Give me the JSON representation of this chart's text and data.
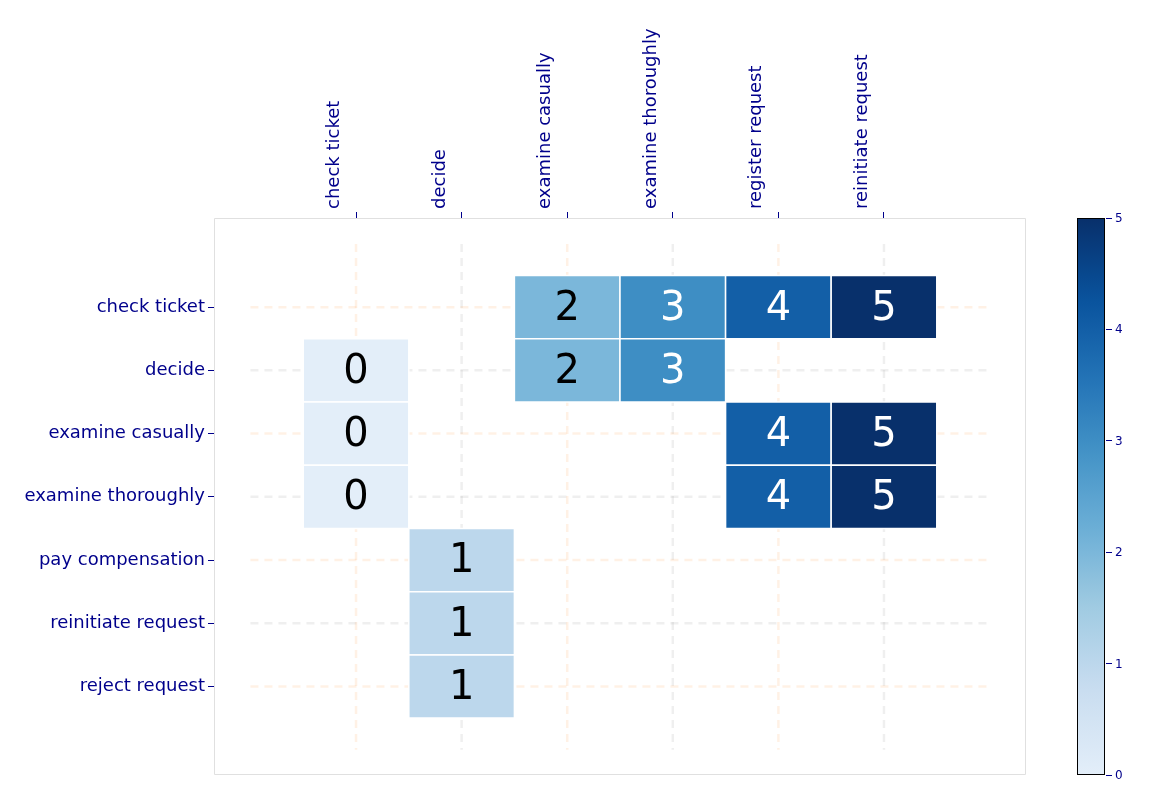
{
  "chart_data": {
    "type": "heatmap",
    "categories": [
      "check ticket",
      "decide",
      "examine casually",
      "examine thoroughly",
      "register request",
      "reinitiate request"
    ],
    "y_categories": [
      "check ticket",
      "decide",
      "examine casually",
      "examine thoroughly",
      "pay compensation",
      "reinitiate request",
      "reject request"
    ],
    "cells": [
      [
        null,
        null,
        2,
        3,
        4,
        5
      ],
      [
        0,
        null,
        2,
        3,
        null,
        null
      ],
      [
        0,
        null,
        null,
        null,
        4,
        5
      ],
      [
        0,
        null,
        null,
        null,
        4,
        5
      ],
      [
        null,
        1,
        null,
        null,
        null,
        null
      ],
      [
        null,
        1,
        null,
        null,
        null,
        null
      ],
      [
        null,
        1,
        null,
        null,
        null,
        null
      ]
    ],
    "clim": [
      0,
      5
    ],
    "cticks": [
      0,
      1,
      2,
      3,
      4,
      5
    ],
    "grid": true,
    "data_labels": true
  }
}
